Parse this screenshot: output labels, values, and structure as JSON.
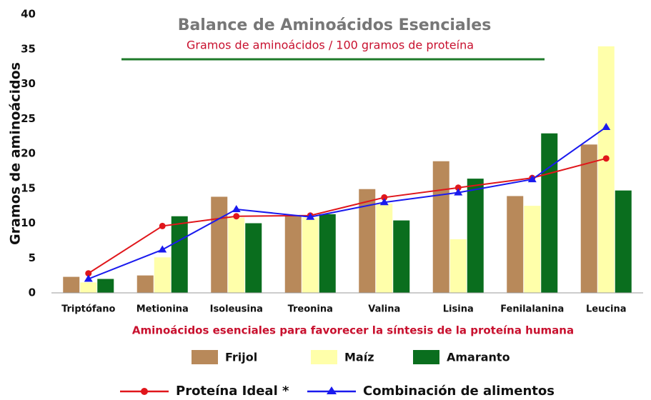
{
  "chart_data": {
    "type": "bar",
    "title": "Balance de Aminoácidos Esenciales",
    "subtitle": "Gramos de aminoácidos / 100 gramos de proteína",
    "y_label": "Gramos de  aminoácidos",
    "x_label": "Aminoácidos esenciales para favorecer la síntesis de la proteína humana",
    "categories": [
      "Triptófano",
      "Metionina",
      "Isoleusina",
      "Treonina",
      "Valina",
      "Lisina",
      "Fenilalanina",
      "Leucina"
    ],
    "series": [
      {
        "name": "Frijol",
        "color": "#b8895a",
        "kind": "bar",
        "values": [
          2.3,
          2.5,
          13.8,
          11.1,
          14.9,
          18.9,
          13.9,
          21.3
        ]
      },
      {
        "name": "Maíz",
        "color": "#ffffaa",
        "kind": "bar",
        "values": [
          1.5,
          5.1,
          10.8,
          10.8,
          12.8,
          7.7,
          12.5,
          35.4
        ]
      },
      {
        "name": "Amaranto",
        "color": "#0a6e1e",
        "kind": "bar",
        "values": [
          2.0,
          11.0,
          10.0,
          11.3,
          10.4,
          16.4,
          22.9,
          14.7
        ]
      },
      {
        "name": "Proteína Ideal *",
        "color": "#e0161b",
        "kind": "line",
        "marker": "circle",
        "values": [
          2.8,
          9.6,
          11.0,
          11.1,
          13.7,
          15.1,
          16.5,
          19.3
        ]
      },
      {
        "name": "Combinación de alimentos",
        "color": "#1a1aee",
        "kind": "line",
        "marker": "triangle",
        "values": [
          2.0,
          6.2,
          12.0,
          10.9,
          13.0,
          14.4,
          16.3,
          23.8
        ]
      }
    ],
    "ylim": [
      0,
      40
    ],
    "yticks": [
      0,
      5,
      10,
      15,
      20,
      25,
      30,
      35,
      40
    ]
  }
}
